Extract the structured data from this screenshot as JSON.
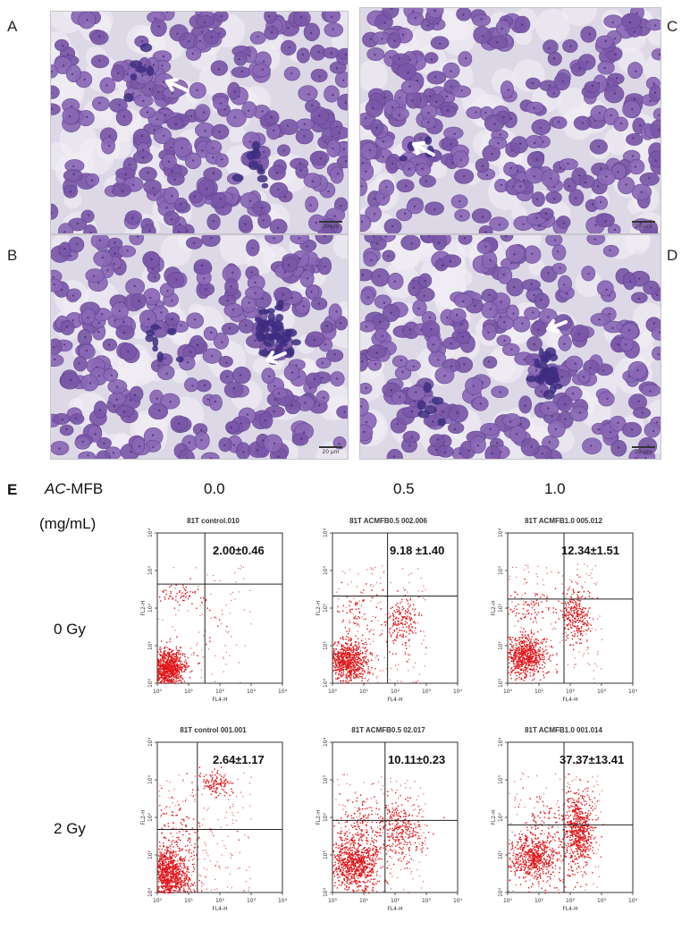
{
  "panels": {
    "a": {
      "letter": "A",
      "scale_label": "20 μm"
    },
    "b": {
      "letter": "B",
      "scale_label": "20 μm"
    },
    "c": {
      "letter": "C",
      "scale_label": "20 μm"
    },
    "d": {
      "letter": "D",
      "scale_label": "20 μm"
    }
  },
  "figure_e": {
    "letter": "E",
    "treatment_prefix": "AC",
    "treatment_suffix": "-MFB",
    "unit": "(mg/mL)",
    "concentrations": [
      "0.0",
      "0.5",
      "1.0"
    ],
    "doses": [
      "0 Gy",
      "2 Gy"
    ],
    "x_axis_label": "FL4-H",
    "y_axis_label": "FL2-H",
    "tick_labels": [
      "10⁰",
      "10¹",
      "10²",
      "10³",
      "10⁴"
    ],
    "plots": [
      {
        "title": "81T control.010",
        "percent": "2.00±0.46"
      },
      {
        "title": "81T ACMFB0.5  002.006",
        "percent": "9.18  ±1.40"
      },
      {
        "title": "81T ACMFB1.0  005.012",
        "percent": "12.34±1.51"
      },
      {
        "title": "81T control 001.001",
        "percent": "2.64±1.17"
      },
      {
        "title": "81T ACMFB0.5  02.017",
        "percent": "10.11±0.23"
      },
      {
        "title": "81T ACMFB1.0  001.014",
        "percent": "37.37±13.41"
      }
    ]
  },
  "colors": {
    "dots": "#e0161a",
    "cell_nucleus": "#7a57a8",
    "cell_dark": "#3d2d80",
    "background_tissue": "#ddd8e6"
  }
}
